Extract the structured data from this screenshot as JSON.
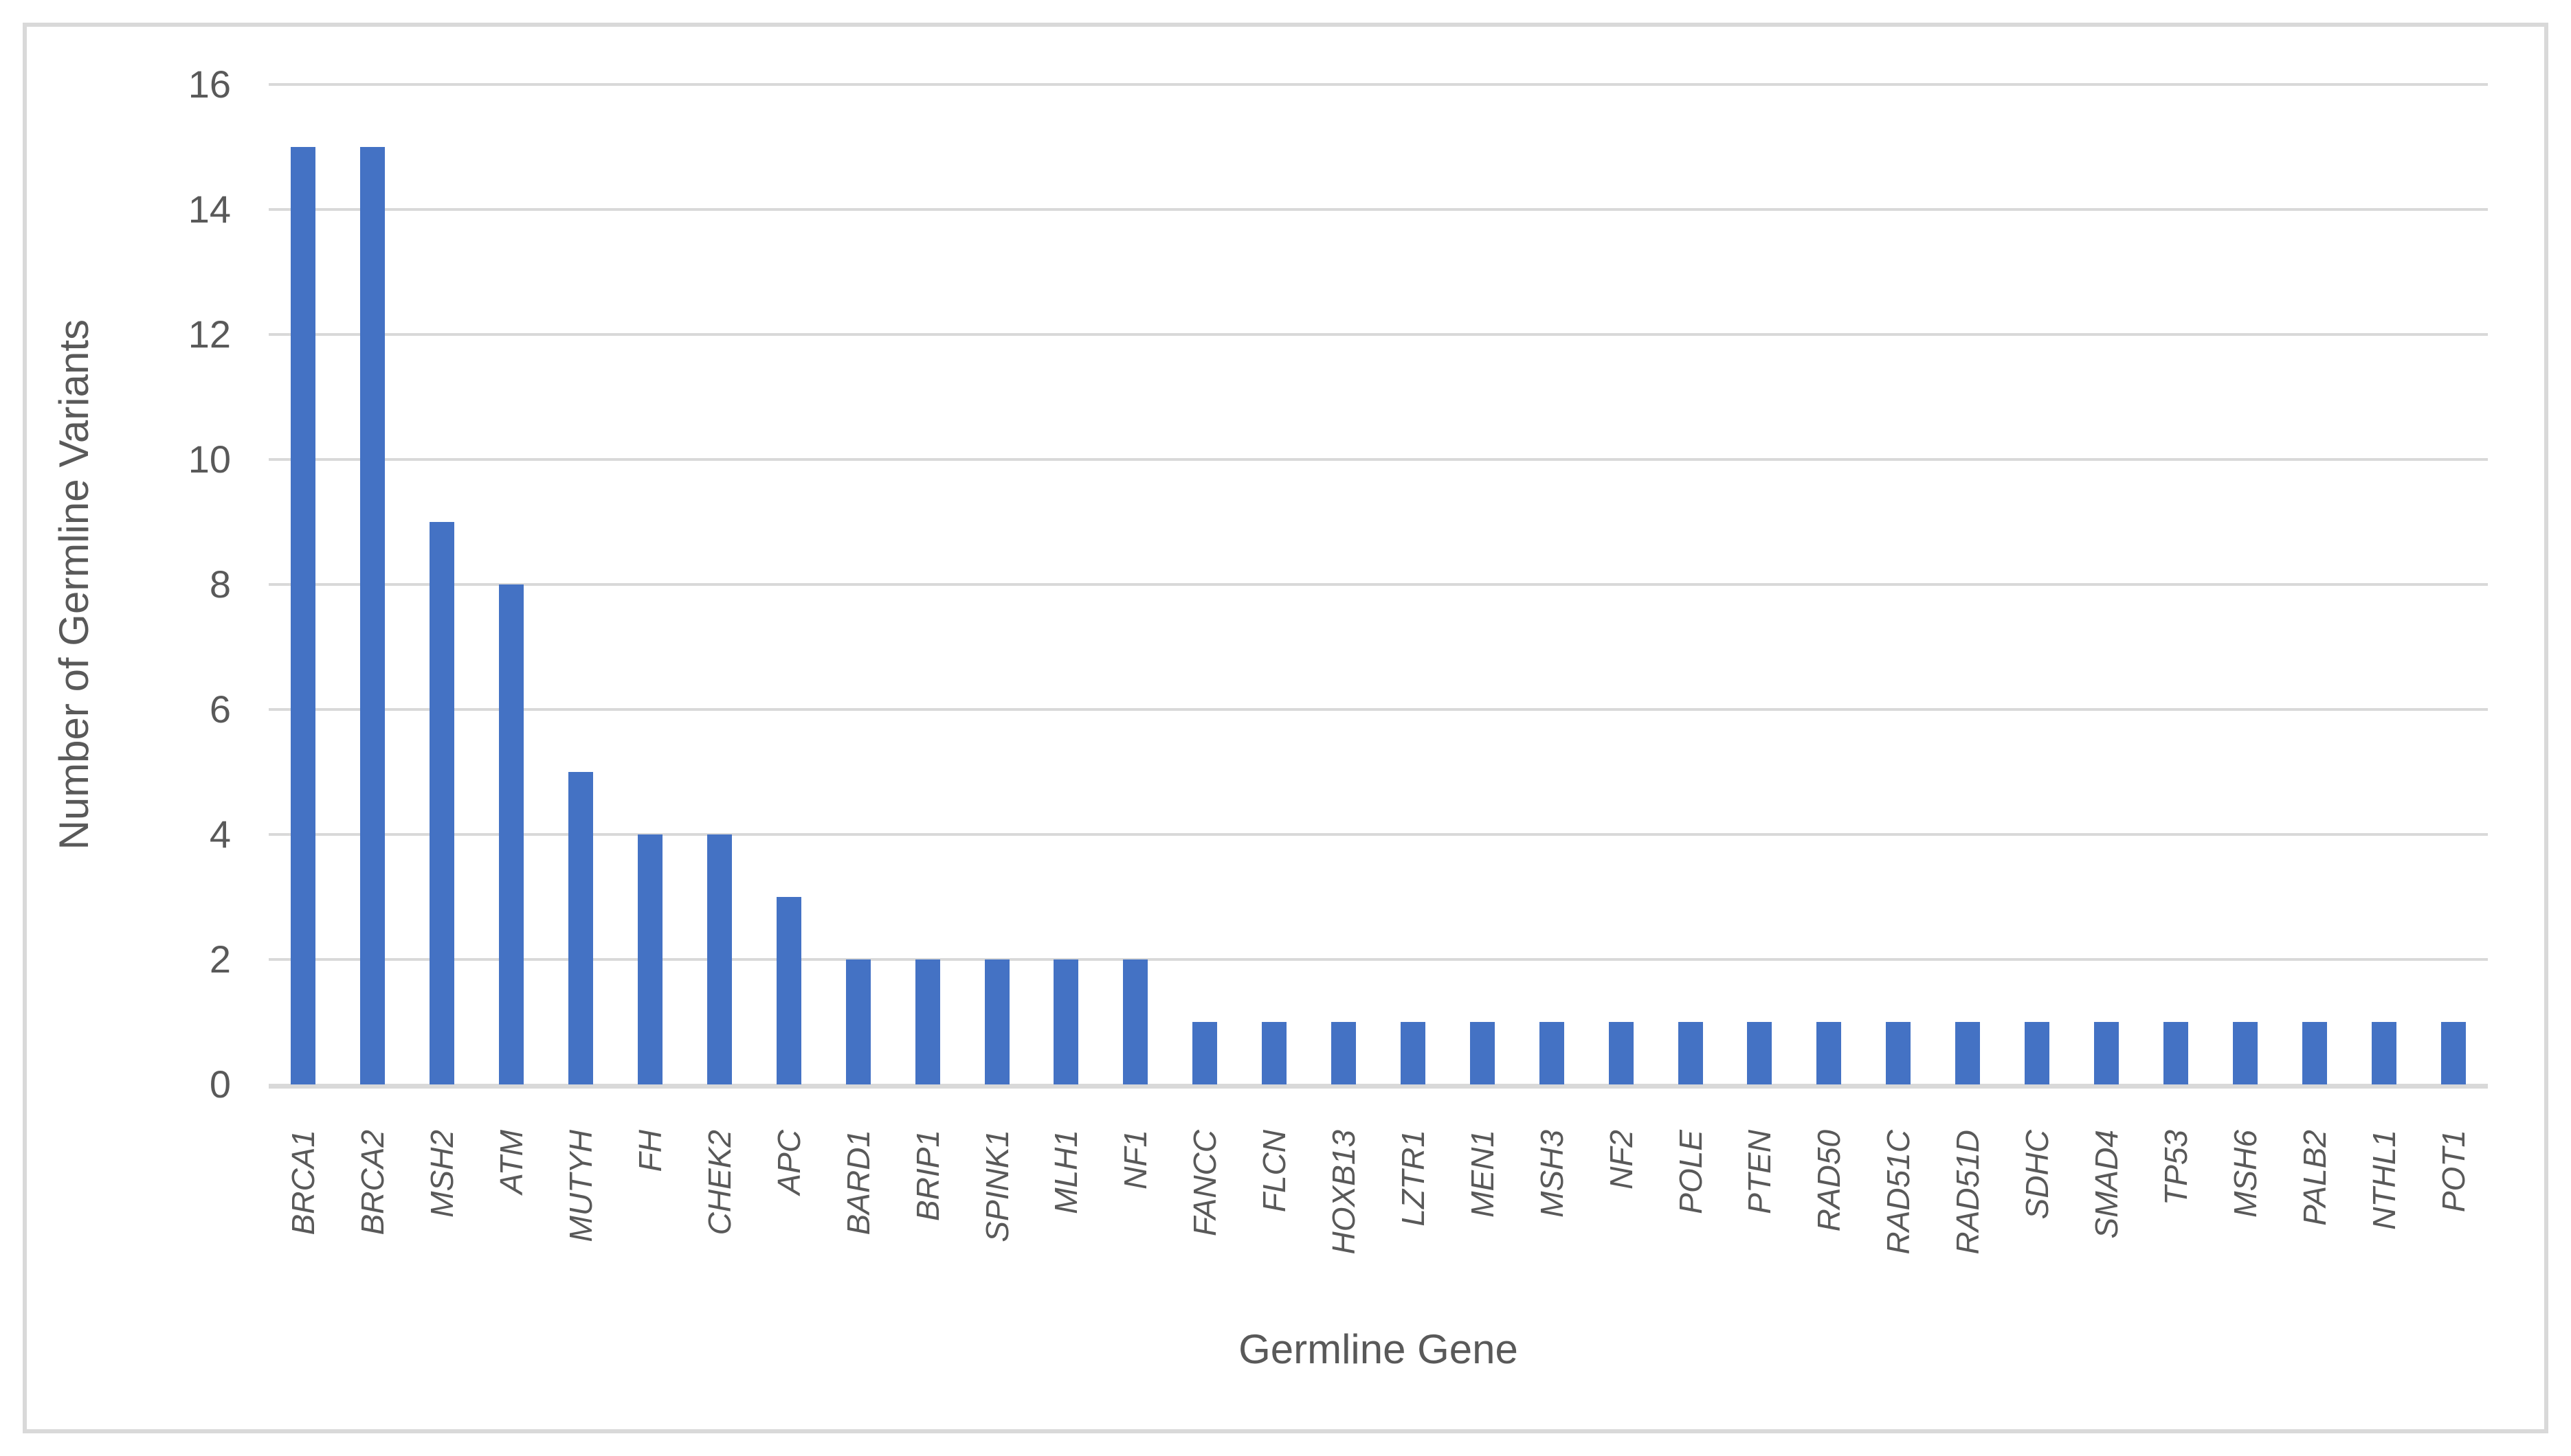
{
  "colors": {
    "bar": "#4472C4",
    "gridline": "#D9D9D9",
    "axis_line": "#D9D9D9",
    "frame_border": "#D9D9D9",
    "text": "#595959",
    "background": "#FFFFFF"
  },
  "chart_data": {
    "type": "bar",
    "title": "",
    "xlabel": "Germline Gene",
    "ylabel": "Number of Germline Variants",
    "categories": [
      "BRCA1",
      "BRCA2",
      "MSH2",
      "ATM",
      "MUTYH",
      "FH",
      "CHEK2",
      "APC",
      "BARD1",
      "BRIP1",
      "SPINK1",
      "MLH1",
      "NF1",
      "FANCC",
      "FLCN",
      "HOXB13",
      "LZTR1",
      "MEN1",
      "MSH3",
      "NF2",
      "POLE",
      "PTEN",
      "RAD50",
      "RAD51C",
      "RAD51D",
      "SDHC",
      "SMAD4",
      "TP53",
      "MSH6",
      "PALB2",
      "NTHL1",
      "POT1"
    ],
    "values": [
      15,
      15,
      9,
      8,
      5,
      4,
      4,
      3,
      2,
      2,
      2,
      2,
      2,
      1,
      1,
      1,
      1,
      1,
      1,
      1,
      1,
      1,
      1,
      1,
      1,
      1,
      1,
      1,
      1,
      1,
      1,
      1
    ],
    "ylim": [
      0,
      16
    ],
    "y_ticks": [
      0,
      2,
      4,
      6,
      8,
      10,
      12,
      14,
      16
    ],
    "grid": true,
    "legend": "none",
    "bar_color": "#4472C4",
    "x_label_style": "italic, rotated 90deg bottom-to-top"
  }
}
